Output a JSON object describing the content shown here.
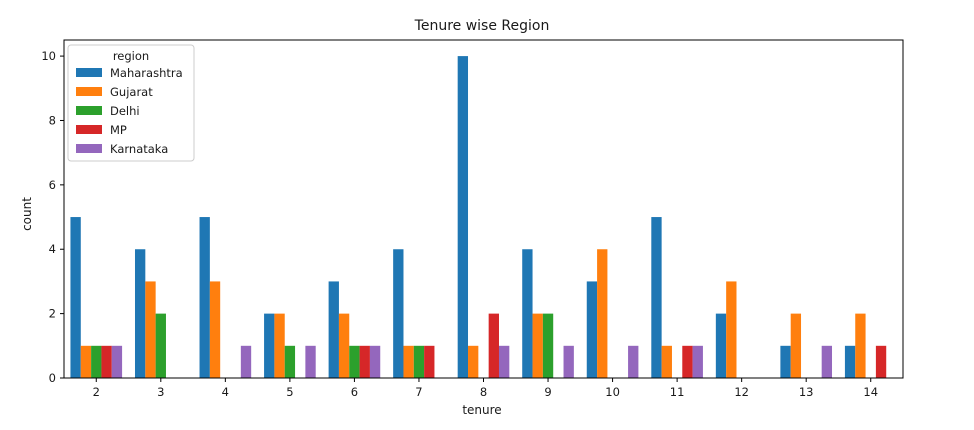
{
  "chart_data": {
    "type": "bar",
    "title": "Tenure wise Region",
    "xlabel": "tenure",
    "ylabel": "count",
    "ylim": [
      0,
      10.5
    ],
    "yticks": [
      0,
      2,
      4,
      6,
      8,
      10
    ],
    "grid": false,
    "legend": {
      "title": "region",
      "placement": "top-left"
    },
    "categories": [
      "2",
      "3",
      "4",
      "5",
      "6",
      "7",
      "8",
      "9",
      "10",
      "11",
      "12",
      "13",
      "14"
    ],
    "series": [
      {
        "name": "Maharashtra",
        "color": "#1f77b4",
        "values": [
          5,
          4,
          5,
          2,
          3,
          4,
          10,
          4,
          3,
          5,
          2,
          1,
          1
        ]
      },
      {
        "name": "Gujarat",
        "color": "#ff7f0e",
        "values": [
          1,
          3,
          3,
          2,
          2,
          1,
          1,
          2,
          4,
          1,
          3,
          2,
          2
        ]
      },
      {
        "name": "Delhi",
        "color": "#2ca02c",
        "values": [
          1,
          2,
          0,
          1,
          1,
          1,
          0,
          2,
          0,
          0,
          0,
          0,
          0
        ]
      },
      {
        "name": "MP",
        "color": "#d62728",
        "values": [
          1,
          0,
          0,
          0,
          1,
          1,
          2,
          0,
          0,
          1,
          0,
          0,
          1
        ]
      },
      {
        "name": "Karnataka",
        "color": "#9467bd",
        "values": [
          1,
          0,
          1,
          1,
          1,
          0,
          1,
          1,
          1,
          1,
          0,
          1,
          0
        ]
      }
    ]
  }
}
